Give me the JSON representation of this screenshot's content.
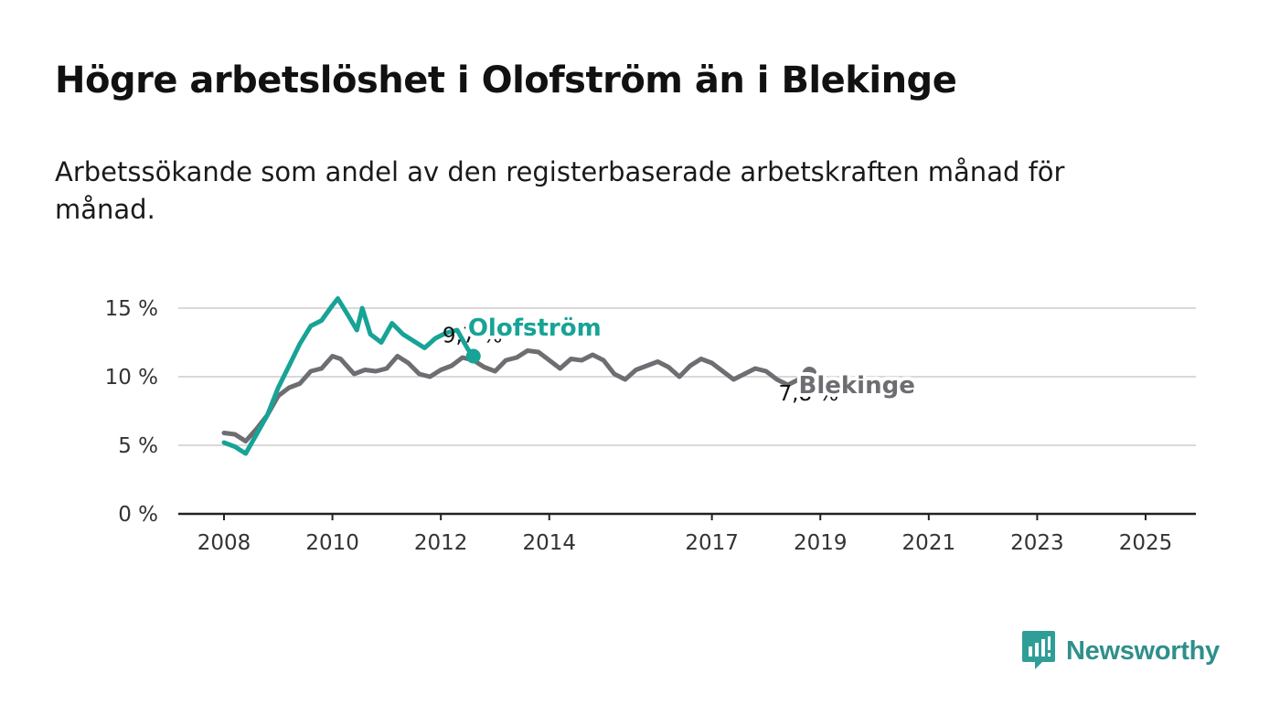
{
  "header": {
    "title": "Högre arbetslöshet i Olofström än i Blekinge",
    "subtitle": "Arbetssökande som andel av den registerbaserade arbetskraften månad för månad."
  },
  "brand": {
    "name": "Newsworthy",
    "icon": "newsworthy-logo-icon",
    "color": "#2f9e97"
  },
  "chart_data": {
    "type": "line",
    "title": "",
    "xlabel": "",
    "ylabel": "",
    "ylim": [
      0,
      15
    ],
    "xlim": [
      2008.0,
      2025.5
    ],
    "grid": true,
    "y_ticks": [
      {
        "value": 0,
        "label": "0 %"
      },
      {
        "value": 5,
        "label": "5 %"
      },
      {
        "value": 10,
        "label": "10 %"
      },
      {
        "value": 15,
        "label": "15 %"
      }
    ],
    "x_ticks": [
      {
        "value": 2008,
        "label": "2008"
      },
      {
        "value": 2010,
        "label": "2010"
      },
      {
        "value": 2012,
        "label": "2012"
      },
      {
        "value": 2014,
        "label": "2014"
      },
      {
        "value": 2017,
        "label": "2017"
      },
      {
        "value": 2019,
        "label": "2019"
      },
      {
        "value": 2021,
        "label": "2021"
      },
      {
        "value": 2023,
        "label": "2023"
      },
      {
        "value": 2025,
        "label": "2025"
      }
    ],
    "series": [
      {
        "name": "Blekinge",
        "color": "#6e6d71",
        "end_label": "7,8 %",
        "points": [
          [
            2008.0,
            5.9
          ],
          [
            2008.2,
            5.8
          ],
          [
            2008.4,
            5.3
          ],
          [
            2008.6,
            6.2
          ],
          [
            2008.8,
            7.2
          ],
          [
            2009.0,
            8.6
          ],
          [
            2009.2,
            9.2
          ],
          [
            2009.4,
            9.5
          ],
          [
            2009.6,
            10.4
          ],
          [
            2009.8,
            10.6
          ],
          [
            2010.0,
            11.5
          ],
          [
            2010.15,
            11.3
          ],
          [
            2010.4,
            10.2
          ],
          [
            2010.6,
            10.5
          ],
          [
            2010.8,
            10.4
          ],
          [
            2011.0,
            10.6
          ],
          [
            2011.2,
            11.5
          ],
          [
            2011.4,
            11.0
          ],
          [
            2011.6,
            10.2
          ],
          [
            2011.8,
            10.0
          ],
          [
            2012.0,
            10.5
          ],
          [
            2012.2,
            10.8
          ],
          [
            2012.4,
            11.4
          ],
          [
            2012.6,
            11.2
          ],
          [
            2012.8,
            10.7
          ],
          [
            2013.0,
            10.4
          ],
          [
            2013.2,
            11.2
          ],
          [
            2013.4,
            11.4
          ],
          [
            2013.6,
            11.9
          ],
          [
            2013.8,
            11.8
          ],
          [
            2014.0,
            11.2
          ],
          [
            2014.2,
            10.6
          ],
          [
            2014.4,
            11.3
          ],
          [
            2014.6,
            11.2
          ],
          [
            2014.8,
            11.6
          ],
          [
            2015.0,
            11.2
          ],
          [
            2015.2,
            10.2
          ],
          [
            2015.4,
            9.8
          ],
          [
            2015.6,
            10.5
          ],
          [
            2015.8,
            10.8
          ],
          [
            2016.0,
            11.1
          ],
          [
            2016.2,
            10.7
          ],
          [
            2016.4,
            10.0
          ],
          [
            2016.6,
            10.8
          ],
          [
            2016.8,
            11.3
          ],
          [
            2017.0,
            11.0
          ],
          [
            2017.2,
            10.4
          ],
          [
            2017.4,
            9.8
          ],
          [
            2017.6,
            10.2
          ],
          [
            2017.8,
            10.6
          ],
          [
            2018.0,
            10.4
          ],
          [
            2018.2,
            9.8
          ],
          [
            2018.4,
            9.4
          ],
          [
            2018.6,
            9.8
          ],
          [
            2018.8,
            10.2
          ]
        ]
      },
      {
        "name": "Olofström",
        "color": "#17a396",
        "end_label": "9,7 %",
        "points": [
          [
            2008.0,
            5.2
          ],
          [
            2008.2,
            4.9
          ],
          [
            2008.4,
            4.4
          ],
          [
            2008.6,
            5.8
          ],
          [
            2008.8,
            7.2
          ],
          [
            2009.0,
            9.2
          ],
          [
            2009.2,
            10.8
          ],
          [
            2009.4,
            12.4
          ],
          [
            2009.6,
            13.7
          ],
          [
            2009.8,
            14.1
          ],
          [
            2010.0,
            15.2
          ],
          [
            2010.1,
            15.7
          ],
          [
            2010.3,
            14.4
          ],
          [
            2010.45,
            13.4
          ],
          [
            2010.55,
            15.0
          ],
          [
            2010.7,
            13.1
          ],
          [
            2010.9,
            12.5
          ],
          [
            2011.1,
            13.9
          ],
          [
            2011.3,
            13.1
          ],
          [
            2011.5,
            12.6
          ],
          [
            2011.7,
            12.1
          ],
          [
            2011.9,
            12.8
          ],
          [
            2012.1,
            13.2
          ],
          [
            2012.3,
            13.4
          ],
          [
            2012.5,
            12.0
          ],
          [
            2012.6,
            11.5
          ]
        ]
      }
    ],
    "labels": [
      {
        "text": "Olofström",
        "series": "Olofström"
      },
      {
        "text": "Blekinge",
        "series": "Blekinge"
      }
    ]
  }
}
